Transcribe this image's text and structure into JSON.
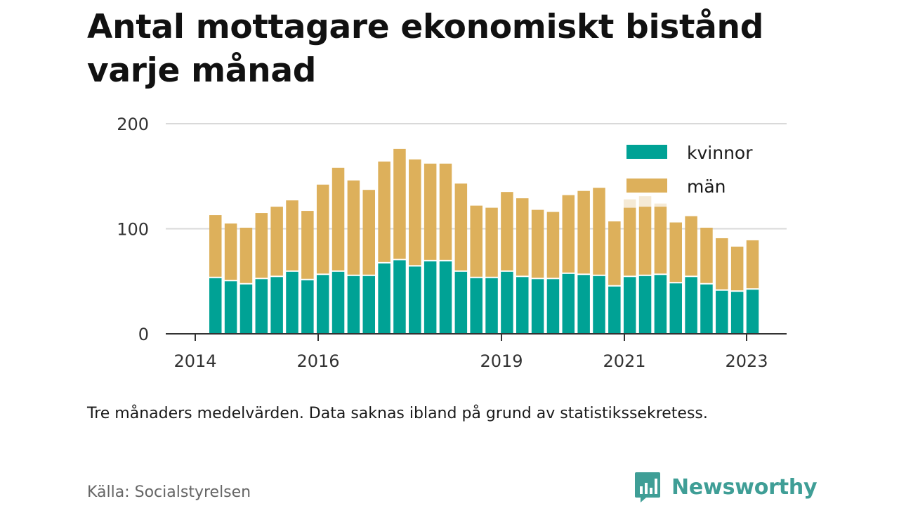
{
  "title": "Antal mottagare ekonomiskt bistånd varje månad",
  "note": "Tre månaders medelvärden. Data saknas ibland på grund av statistikssekretess.",
  "source": "Källa: Socialstyrelsen",
  "brand": {
    "name": "Newsworthy",
    "color": "#3f9e96",
    "logo_icon": "newsworthy-logo-icon"
  },
  "colors": {
    "kvinnor": "#00a295",
    "man": "#ddb05b",
    "faded": "#f5ead6",
    "grid": "#d9d9d9",
    "axis": "#333333"
  },
  "chart_data": {
    "type": "bar",
    "stacked": true,
    "x_ticks": [
      "2014",
      "2016",
      "2019",
      "2021",
      "2023"
    ],
    "y_ticks": [
      "0",
      "100",
      "200"
    ],
    "ylim": [
      0,
      200
    ],
    "grid": true,
    "legend_position": "top-right",
    "series": [
      {
        "name": "kvinnor",
        "color": "#00a295",
        "values": [
          53,
          50,
          47,
          52,
          54,
          59,
          51,
          56,
          59,
          55,
          55,
          67,
          70,
          64,
          69,
          69,
          59,
          53,
          53,
          59,
          54,
          52,
          52,
          57,
          56,
          55,
          45,
          54,
          55,
          56,
          48,
          54,
          47,
          41,
          40,
          42
        ]
      },
      {
        "name": "män",
        "color": "#ddb05b",
        "values": [
          60,
          55,
          54,
          63,
          67,
          68,
          66,
          86,
          99,
          91,
          82,
          97,
          106,
          102,
          93,
          93,
          84,
          69,
          67,
          76,
          75,
          66,
          64,
          75,
          80,
          84,
          62,
          66,
          66,
          65,
          58,
          58,
          54,
          50,
          43,
          47
        ]
      }
    ],
    "faded_totals": [
      null,
      null,
      null,
      null,
      null,
      null,
      null,
      null,
      null,
      null,
      null,
      null,
      null,
      null,
      null,
      null,
      null,
      null,
      null,
      null,
      null,
      null,
      null,
      null,
      null,
      null,
      null,
      128,
      131,
      124,
      null,
      null,
      null,
      null,
      null,
      null
    ]
  }
}
